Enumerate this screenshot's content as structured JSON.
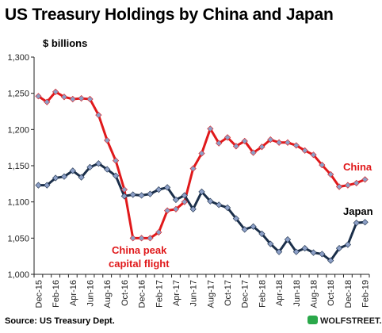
{
  "title": "US Treasury Holdings by China and Japan",
  "unit_label": "$ billions",
  "source": "Source: US Treasury Dept.",
  "watermark": "WOLFSTREET.com",
  "colors": {
    "china_line": "#e0191b",
    "china_marker": "#8c9fc6",
    "japan_line": "#1b2f4a",
    "japan_marker": "#8c9fc6",
    "axis": "#222222",
    "gridline": "#d9d9d9"
  },
  "chart_data": {
    "type": "line",
    "title": "US Treasury Holdings by China and Japan",
    "ylabel": "$ billions",
    "ylim": [
      1000,
      1300
    ],
    "yticks": [
      "1,000",
      "1,050",
      "1,100",
      "1,150",
      "1,200",
      "1,250",
      "1,300"
    ],
    "ytick_values": [
      1000,
      1050,
      1100,
      1150,
      1200,
      1250,
      1300
    ],
    "x": [
      "Dec-15",
      "Jan-16",
      "Feb-16",
      "Mar-16",
      "Apr-16",
      "May-16",
      "Jun-16",
      "Jul-16",
      "Aug-16",
      "Sep-16",
      "Oct-16",
      "Nov-16",
      "Dec-16",
      "Jan-17",
      "Feb-17",
      "Mar-17",
      "Apr-17",
      "May-17",
      "Jun-17",
      "Jul-17",
      "Aug-17",
      "Sep-17",
      "Oct-17",
      "Nov-17",
      "Dec-17",
      "Jan-18",
      "Feb-18",
      "Mar-18",
      "Apr-18",
      "May-18",
      "Jun-18",
      "Jul-18",
      "Aug-18",
      "Sep-18",
      "Oct-18",
      "Nov-18",
      "Dec-18",
      "Jan-19",
      "Feb-19"
    ],
    "x_tick_labels": [
      "Dec-15",
      "Feb-16",
      "Apr-16",
      "Jun-16",
      "Aug-16",
      "Oct-16",
      "Dec-16",
      "Feb-17",
      "Apr-17",
      "Jun-17",
      "Aug-17",
      "Oct-17",
      "Dec-17",
      "Feb-18",
      "Apr-18",
      "Jun-18",
      "Aug-18",
      "Oct-18",
      "Dec-18",
      "Feb-19"
    ],
    "grid": false,
    "series": [
      {
        "name": "China",
        "values": [
          1246,
          1238,
          1252,
          1245,
          1242,
          1243,
          1242,
          1220,
          1185,
          1157,
          1117,
          1050,
          1050,
          1050,
          1058,
          1088,
          1090,
          1100,
          1146,
          1167,
          1201,
          1181,
          1189,
          1177,
          1184,
          1168,
          1176,
          1186,
          1182,
          1182,
          1178,
          1171,
          1165,
          1151,
          1138,
          1121,
          1123,
          1126,
          1131
        ]
      },
      {
        "name": "Japan",
        "values": [
          1123,
          1123,
          1133,
          1135,
          1143,
          1134,
          1148,
          1153,
          1145,
          1136,
          1108,
          1110,
          1109,
          1111,
          1117,
          1120,
          1103,
          1109,
          1090,
          1114,
          1101,
          1096,
          1092,
          1077,
          1062,
          1066,
          1056,
          1042,
          1031,
          1048,
          1031,
          1036,
          1030,
          1028,
          1019,
          1036,
          1041,
          1071,
          1072
        ]
      }
    ],
    "series_labels": [
      "China",
      "Japan"
    ],
    "annotation": [
      "China peak",
      "capital flight"
    ]
  }
}
